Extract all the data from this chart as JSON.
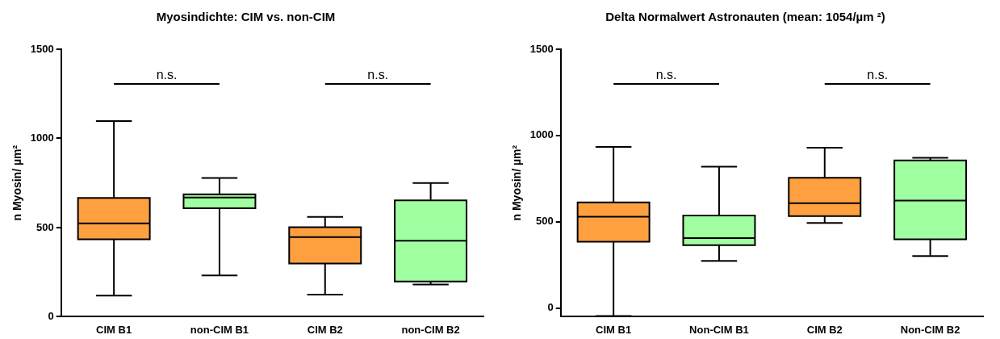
{
  "chart_data": [
    {
      "type": "box",
      "title": "Myosindichte: CIM vs. non-CIM",
      "ylabel": "n Myosin/ µm²",
      "categories": [
        "CIM B1",
        "non-CIM B1",
        "CIM B2",
        "non-CIM B2"
      ],
      "colors": [
        "#ffa040",
        "#a0ffa0",
        "#ffa040",
        "#a0ffa0"
      ],
      "boxes": [
        {
          "low": 118,
          "q1": 434,
          "median": 523,
          "q3": 666,
          "high": 1097
        },
        {
          "low": 232,
          "q1": 608,
          "median": 668,
          "q3": 686,
          "high": 778
        },
        {
          "low": 124,
          "q1": 298,
          "median": 446,
          "q3": 502,
          "high": 560
        },
        {
          "low": 181,
          "q1": 198,
          "median": 426,
          "q3": 652,
          "high": 750
        }
      ],
      "ylim": [
        0,
        1500
      ],
      "yticks": [
        0,
        500,
        1000,
        1500
      ],
      "grid": false,
      "legend": false,
      "annotations": [
        "n.s.",
        "n.s."
      ]
    },
    {
      "type": "box",
      "title": "Delta Normalwert Astronauten (mean: 1054/µm ²)",
      "ylabel": "n Myosin/ µm²",
      "categories": [
        "CIM B1",
        "Non-CIM B1",
        "CIM B2",
        "Non-CIM B2"
      ],
      "colors": [
        "#ffa040",
        "#a0ffa0",
        "#ffa040",
        "#a0ffa0"
      ],
      "boxes": [
        {
          "low": -46,
          "q1": 384,
          "median": 529,
          "q3": 613,
          "high": 934
        },
        {
          "low": 273,
          "q1": 365,
          "median": 405,
          "q3": 537,
          "high": 820
        },
        {
          "low": 493,
          "q1": 533,
          "median": 608,
          "q3": 755,
          "high": 929
        },
        {
          "low": 302,
          "q1": 399,
          "median": 623,
          "q3": 856,
          "high": 871
        }
      ],
      "ylim": [
        -50,
        1500
      ],
      "yticks": [
        0,
        500,
        1000,
        1500
      ],
      "grid": false,
      "legend": false,
      "annotations": [
        "n.s.",
        "n.s."
      ]
    }
  ]
}
